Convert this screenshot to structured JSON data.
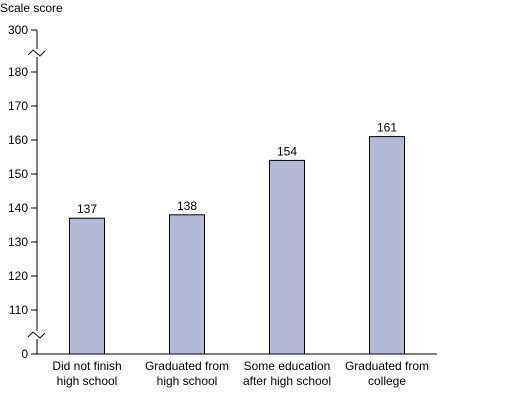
{
  "chart_data": {
    "type": "bar",
    "ylabel": "Scale score",
    "categories": [
      [
        "Did not finish",
        "high school"
      ],
      [
        "Graduated from",
        "high school"
      ],
      [
        "Some education",
        "after high school"
      ],
      [
        "Graduated from",
        "college"
      ]
    ],
    "values": [
      137,
      138,
      154,
      161
    ],
    "data_labels": [
      "137",
      "138",
      "154",
      "161"
    ],
    "y_ticks": [
      {
        "value": 0,
        "label": "0"
      },
      {
        "value": 110,
        "label": "110"
      },
      {
        "value": 120,
        "label": "120"
      },
      {
        "value": 130,
        "label": "130"
      },
      {
        "value": 140,
        "label": "140"
      },
      {
        "value": 150,
        "label": "150"
      },
      {
        "value": 160,
        "label": "160"
      },
      {
        "value": 170,
        "label": "170"
      },
      {
        "value": 180,
        "label": "180"
      },
      {
        "value": 300,
        "label": "300"
      }
    ],
    "axis_breaks": [
      "between 0 and 110",
      "between 180 and 300"
    ],
    "grid": false,
    "legend": "none",
    "bar_color": "#b6b9d6",
    "bar_stroke": "#000000"
  }
}
